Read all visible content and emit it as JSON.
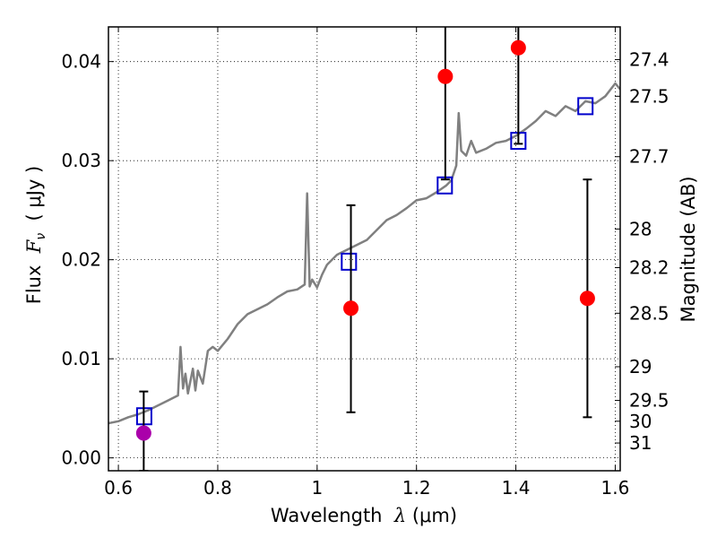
{
  "chart_data": {
    "type": "scatter",
    "xlabel": "Wavelength  λ (μm)",
    "ylabel": "Flux  F_ν  ( μJy )",
    "ylabel_parts": {
      "prefix": "Flux  ",
      "symbol": "F",
      "subscript": "ν",
      "suffix": "  ( μJy )"
    },
    "xlabel_parts": {
      "prefix": "Wavelength  ",
      "symbol": "λ",
      "suffix": " (μm)"
    },
    "y2label": "Magnitude (AB)",
    "xlim": [
      0.58,
      1.61
    ],
    "ylim": [
      -0.0013,
      0.0435
    ],
    "grid": true,
    "x_ticks": [
      0.6,
      0.8,
      1.0,
      1.2,
      1.4,
      1.6
    ],
    "x_tick_labels": [
      "0.6",
      "0.8",
      "1",
      "1.2",
      "1.4",
      "1.6"
    ],
    "y_ticks": [
      0.0,
      0.01,
      0.02,
      0.03,
      0.04
    ],
    "y_tick_labels": [
      "0.00",
      "0.01",
      "0.02",
      "0.03",
      "0.04"
    ],
    "y2_ticks": [
      {
        "label": "27.4",
        "flux": 0.0402
      },
      {
        "label": "27.5",
        "flux": 0.0365
      },
      {
        "label": "27.7",
        "flux": 0.0304
      },
      {
        "label": "28",
        "flux": 0.0231
      },
      {
        "label": "28.2",
        "flux": 0.0192
      },
      {
        "label": "28.5",
        "flux": 0.0146
      },
      {
        "label": "29",
        "flux": 0.0092
      },
      {
        "label": "29.5",
        "flux": 0.0058
      },
      {
        "label": "30",
        "flux": 0.0037
      },
      {
        "label": "31",
        "flux": 0.0015
      }
    ],
    "series": [
      {
        "kind": "line",
        "color": "#808080",
        "x": [
          0.58,
          0.6,
          0.62,
          0.64,
          0.66,
          0.68,
          0.7,
          0.72,
          0.725,
          0.73,
          0.735,
          0.74,
          0.75,
          0.755,
          0.76,
          0.77,
          0.78,
          0.79,
          0.8,
          0.82,
          0.84,
          0.86,
          0.88,
          0.9,
          0.92,
          0.94,
          0.96,
          0.975,
          0.98,
          0.985,
          0.99,
          1.0,
          1.01,
          1.02,
          1.04,
          1.06,
          1.08,
          1.1,
          1.12,
          1.14,
          1.16,
          1.18,
          1.2,
          1.22,
          1.24,
          1.26,
          1.27,
          1.28,
          1.285,
          1.29,
          1.3,
          1.31,
          1.32,
          1.34,
          1.36,
          1.38,
          1.4,
          1.42,
          1.44,
          1.46,
          1.48,
          1.5,
          1.52,
          1.54,
          1.56,
          1.58,
          1.6,
          1.61
        ],
        "y": [
          0.0035,
          0.0037,
          0.0041,
          0.0044,
          0.0048,
          0.0053,
          0.0058,
          0.0063,
          0.0112,
          0.007,
          0.0085,
          0.0065,
          0.009,
          0.0068,
          0.0088,
          0.0075,
          0.0108,
          0.0112,
          0.0108,
          0.012,
          0.0135,
          0.0145,
          0.015,
          0.0155,
          0.0162,
          0.0168,
          0.017,
          0.0175,
          0.0267,
          0.0173,
          0.018,
          0.0172,
          0.0185,
          0.0195,
          0.0205,
          0.021,
          0.0215,
          0.022,
          0.023,
          0.024,
          0.0245,
          0.0252,
          0.026,
          0.0262,
          0.0268,
          0.0275,
          0.028,
          0.0295,
          0.0348,
          0.031,
          0.0305,
          0.032,
          0.0308,
          0.0312,
          0.0318,
          0.032,
          0.0325,
          0.0332,
          0.034,
          0.035,
          0.0345,
          0.0355,
          0.035,
          0.036,
          0.0358,
          0.0365,
          0.0378,
          0.0372
        ]
      },
      {
        "kind": "points",
        "marker": "open-square",
        "color": "#0000cc",
        "x": [
          0.652,
          1.064,
          1.257,
          1.405,
          1.54
        ],
        "y": [
          0.0042,
          0.0198,
          0.0275,
          0.032,
          0.0355
        ]
      },
      {
        "kind": "points",
        "marker": "filled-circle",
        "color": "#ff0000",
        "x": [
          1.068,
          1.258,
          1.405,
          1.544
        ],
        "y": [
          0.0151,
          0.0385,
          0.0414,
          0.0161
        ],
        "yerr_low": [
          0.0046,
          0.0281,
          0.0317,
          0.0041
        ],
        "yerr_high": [
          0.0255,
          0.0438,
          0.0438,
          0.0281
        ]
      },
      {
        "kind": "points",
        "marker": "filled-circle",
        "color": "#aa00aa",
        "x": [
          0.651
        ],
        "y": [
          0.0025
        ],
        "yerr_low": [
          -0.0013
        ],
        "yerr_high": [
          0.0067
        ]
      }
    ]
  }
}
